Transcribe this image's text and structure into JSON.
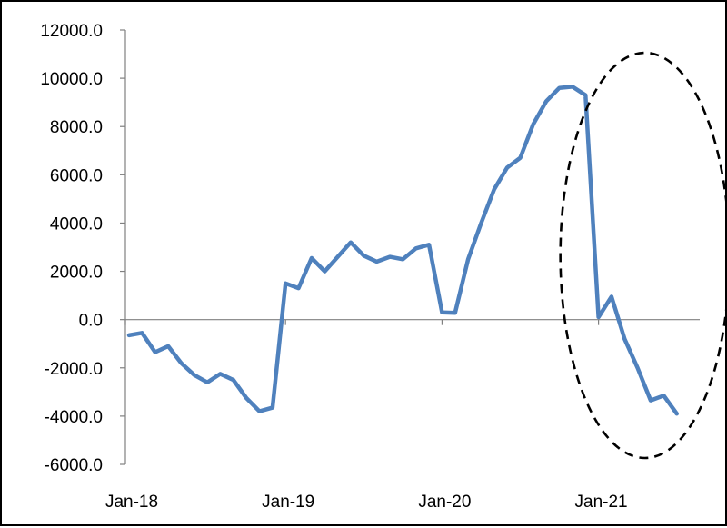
{
  "chart_data": {
    "type": "line",
    "title": "",
    "xlabel": "",
    "ylabel": "",
    "ylim": [
      -6000,
      12000
    ],
    "y_ticks": [
      12000,
      10000,
      8000,
      6000,
      4000,
      2000,
      0,
      -2000,
      -4000,
      -6000
    ],
    "y_tick_labels": [
      "12000.0",
      "10000.0",
      "8000.0",
      "6000.0",
      "4000.0",
      "2000.0",
      "0.0",
      "-2000.0",
      "-4000.0",
      "-6000.0"
    ],
    "x_tick_labels": [
      "Jan-18",
      "Jan-19",
      "Jan-20",
      "Jan-21"
    ],
    "x_tick_months": [
      0,
      12,
      24,
      36
    ],
    "grid": false,
    "legend": "none",
    "line_color": "#4f81bd",
    "annotation": {
      "shape": "dashed-ellipse",
      "color": "#000000",
      "highlights_months": [
        32,
        46
      ]
    },
    "series": [
      {
        "x": [
          "Jan-18",
          "Feb-18",
          "Mar-18",
          "Apr-18",
          "May-18",
          "Jun-18",
          "Jul-18",
          "Aug-18",
          "Sep-18",
          "Oct-18",
          "Nov-18",
          "Dec-18",
          "Jan-19",
          "Feb-19",
          "Mar-19",
          "Apr-19",
          "May-19",
          "Jun-19",
          "Jul-19",
          "Aug-19",
          "Sep-19",
          "Oct-19",
          "Nov-19",
          "Dec-19",
          "Jan-20",
          "Feb-20",
          "Mar-20",
          "Apr-20",
          "May-20",
          "Jun-20",
          "Jul-20",
          "Aug-20",
          "Sep-20",
          "Oct-20",
          "Nov-20",
          "Dec-20",
          "Jan-21",
          "Feb-21",
          "Mar-21",
          "Apr-21",
          "May-21",
          "Jun-21",
          "Jul-21"
        ],
        "values": [
          -650,
          -550,
          -1350,
          -1100,
          -1800,
          -2300,
          -2600,
          -2250,
          -2500,
          -3250,
          -3800,
          -3650,
          1500,
          1300,
          2550,
          2000,
          2600,
          3200,
          2650,
          2400,
          2600,
          2500,
          2950,
          3100,
          300,
          280,
          2500,
          4000,
          5400,
          6300,
          6700,
          8100,
          9050,
          9600,
          9650,
          9300,
          100,
          950,
          -800,
          -2000,
          -3350,
          -3150,
          -3900
        ]
      }
    ]
  }
}
